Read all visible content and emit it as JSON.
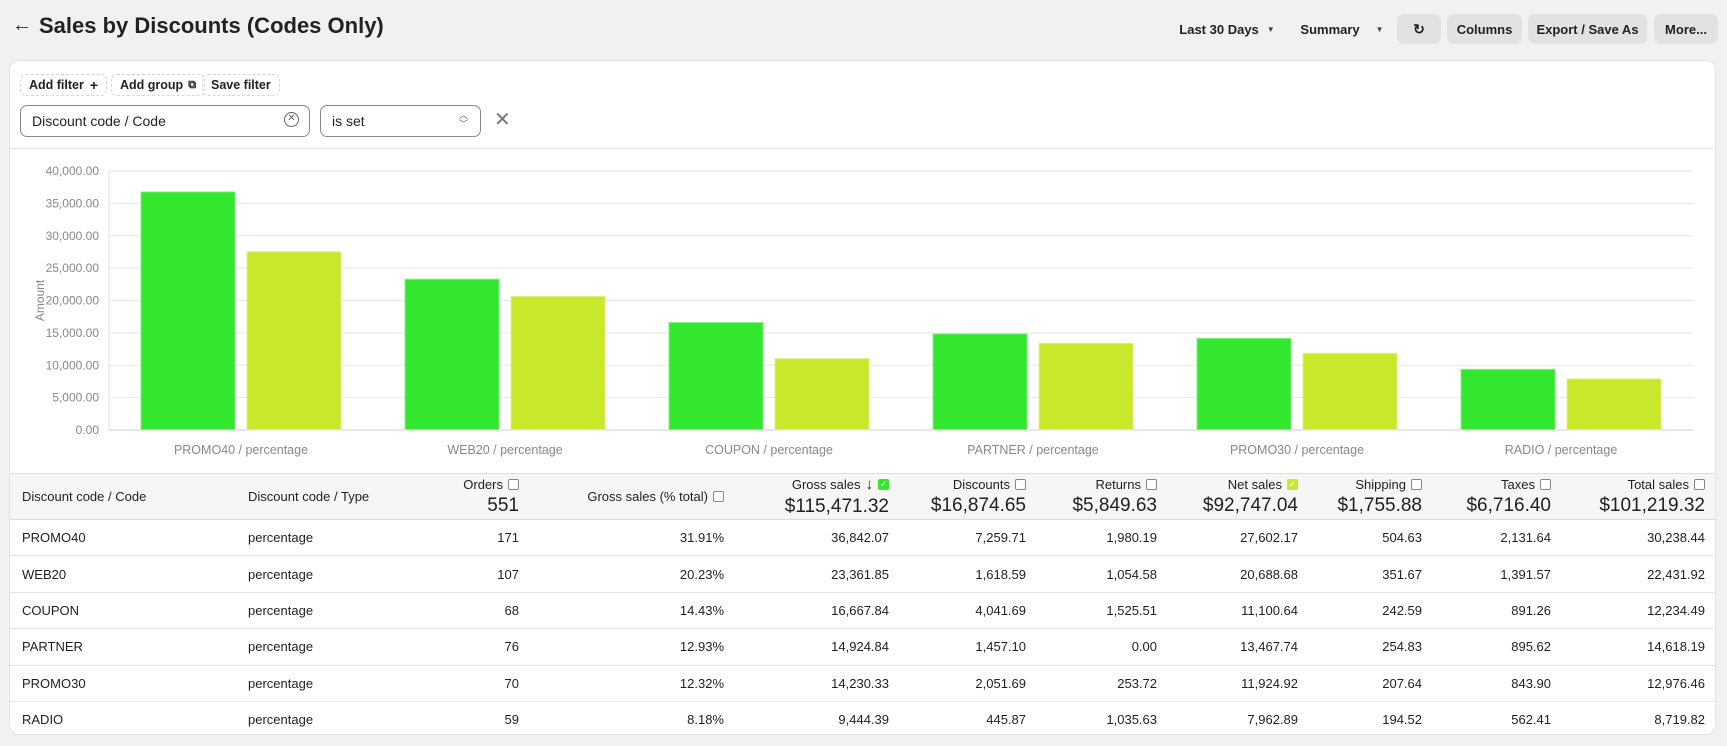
{
  "header": {
    "title": "Sales by Discounts (Codes Only)",
    "date_range": "Last 30 Days",
    "view": "Summary",
    "columns": "Columns",
    "export": "Export / Save As",
    "more": "More..."
  },
  "filters": {
    "add_filter": "Add filter",
    "add_group": "Add group",
    "save_filter": "Save filter",
    "field": "Discount code / Code",
    "operator": "is set"
  },
  "colors": {
    "gross": "#33e62e",
    "net": "#c9e82c"
  },
  "chart_data": {
    "type": "bar",
    "ylabel": "Amount",
    "ylim": [
      0,
      40000
    ],
    "yticks": [
      "0.00",
      "5,000.00",
      "10,000.00",
      "15,000.00",
      "20,000.00",
      "25,000.00",
      "30,000.00",
      "35,000.00",
      "40,000.00"
    ],
    "grid": true,
    "categories": [
      "PROMO40 / percentage",
      "WEB20 / percentage",
      "COUPON / percentage",
      "PARTNER / percentage",
      "PROMO30 / percentage",
      "RADIO / percentage"
    ],
    "series": [
      {
        "values": [
          36842.07,
          23361.85,
          16667.84,
          14924.84,
          14230.33,
          9444.39
        ]
      },
      {
        "values": [
          27602.17,
          20688.68,
          11100.64,
          13467.74,
          11924.92,
          7962.89
        ]
      }
    ]
  },
  "table": {
    "columns": [
      {
        "label": "Discount code / Code"
      },
      {
        "label": "Discount code / Type"
      },
      {
        "label": "Orders",
        "total": "551",
        "check": false
      },
      {
        "label": "Gross sales (% total)",
        "check": false
      },
      {
        "label": "Gross sales",
        "total": "$115,471.32",
        "check": true,
        "sort": "desc"
      },
      {
        "label": "Discounts",
        "total": "$16,874.65",
        "check": false
      },
      {
        "label": "Returns",
        "total": "$5,849.63",
        "check": false
      },
      {
        "label": "Net sales",
        "total": "$92,747.04",
        "check": true
      },
      {
        "label": "Shipping",
        "total": "$1,755.88",
        "check": false
      },
      {
        "label": "Taxes",
        "total": "$6,716.40",
        "check": false
      },
      {
        "label": "Total sales",
        "total": "$101,219.32",
        "check": false
      }
    ],
    "rows": [
      [
        "PROMO40",
        "percentage",
        "171",
        "31.91%",
        "36,842.07",
        "7,259.71",
        "1,980.19",
        "27,602.17",
        "504.63",
        "2,131.64",
        "30,238.44"
      ],
      [
        "WEB20",
        "percentage",
        "107",
        "20.23%",
        "23,361.85",
        "1,618.59",
        "1,054.58",
        "20,688.68",
        "351.67",
        "1,391.57",
        "22,431.92"
      ],
      [
        "COUPON",
        "percentage",
        "68",
        "14.43%",
        "16,667.84",
        "4,041.69",
        "1,525.51",
        "11,100.64",
        "242.59",
        "891.26",
        "12,234.49"
      ],
      [
        "PARTNER",
        "percentage",
        "76",
        "12.93%",
        "14,924.84",
        "1,457.10",
        "0.00",
        "13,467.74",
        "254.83",
        "895.62",
        "14,618.19"
      ],
      [
        "PROMO30",
        "percentage",
        "70",
        "12.32%",
        "14,230.33",
        "2,051.69",
        "253.72",
        "11,924.92",
        "207.64",
        "843.90",
        "12,976.46"
      ],
      [
        "RADIO",
        "percentage",
        "59",
        "8.18%",
        "9,444.39",
        "445.87",
        "1,035.63",
        "7,962.89",
        "194.52",
        "562.41",
        "8,719.82"
      ]
    ]
  }
}
